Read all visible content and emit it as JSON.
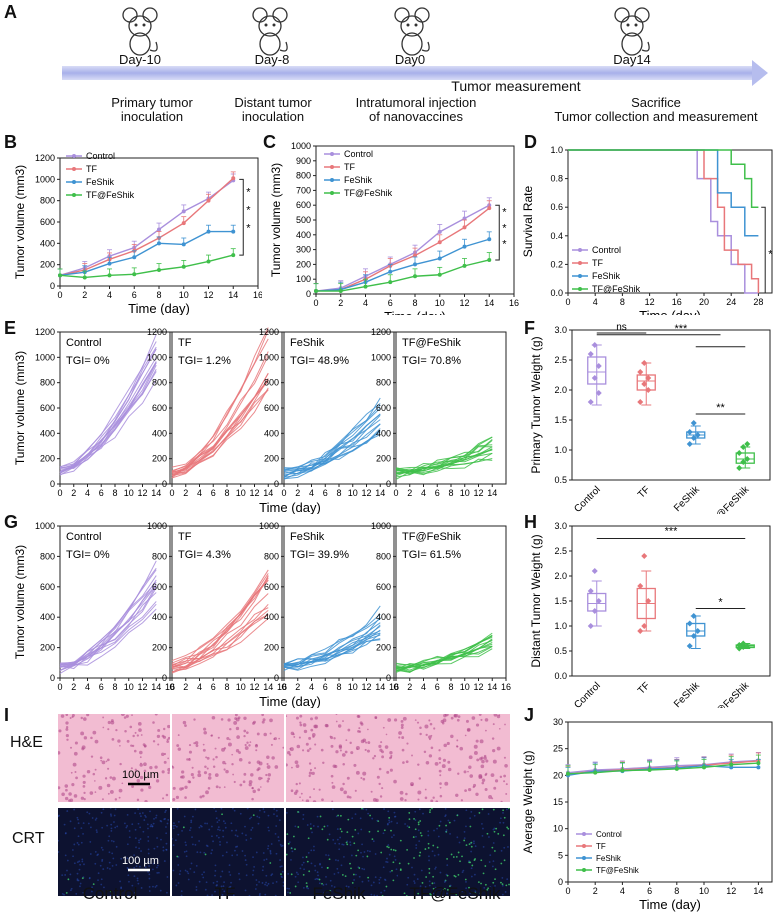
{
  "panels": {
    "A": "A",
    "B": "B",
    "C": "C",
    "D": "D",
    "E": "E",
    "F": "F",
    "G": "G",
    "H": "H",
    "I": "I",
    "J": "J"
  },
  "timeline": {
    "days": [
      "Day-10",
      "Day-8",
      "Day0",
      "Day14"
    ],
    "steps": [
      "Primary tumor inoculation",
      "Distant tumor inoculation",
      "Intratumoral injection of nanovaccines",
      "Sacrifice"
    ],
    "step_lines": [
      [
        "Primary tumor",
        "inoculation"
      ],
      [
        "Distant tumor",
        "inoculation"
      ],
      [
        "Intratumoral injection",
        "of nanovaccines"
      ],
      [
        "Sacrifice",
        "Tumor collection and measurement"
      ]
    ],
    "measurement": "Tumor measurement"
  },
  "colors": {
    "Control": "#a98fdd",
    "TF": "#e8777a",
    "FeShik": "#3f93d2",
    "TF@FeShik": "#3fbf4a"
  },
  "groups": [
    "Control",
    "TF",
    "FeShik",
    "TF@FeShik"
  ],
  "chart_data": [
    {
      "id": "B",
      "type": "line",
      "xlabel": "Time (day)",
      "ylabel": "Tumor volume (mm3)",
      "xlim": [
        0,
        16
      ],
      "ylim": [
        0,
        1200
      ],
      "xticks": [
        0,
        2,
        4,
        6,
        8,
        10,
        12,
        14,
        16
      ],
      "yticks": [
        0,
        200,
        400,
        600,
        800,
        1000,
        1200
      ],
      "x": [
        0,
        2,
        4,
        6,
        8,
        10,
        12,
        14
      ],
      "series": [
        {
          "name": "Control",
          "values": [
            100,
            170,
            280,
            360,
            530,
            700,
            820,
            990
          ]
        },
        {
          "name": "TF",
          "values": [
            100,
            150,
            250,
            330,
            450,
            590,
            800,
            1010
          ]
        },
        {
          "name": "FeShik",
          "values": [
            100,
            130,
            210,
            270,
            400,
            390,
            510,
            510
          ]
        },
        {
          "name": "TF@FeShik",
          "values": [
            100,
            80,
            100,
            110,
            150,
            180,
            230,
            290
          ]
        }
      ],
      "significance": [
        "*",
        "*",
        "*"
      ]
    },
    {
      "id": "C",
      "type": "line",
      "xlabel": "Time (day)",
      "ylabel": "Tumor volume (mm3)",
      "xlim": [
        0,
        16
      ],
      "ylim": [
        0,
        1000
      ],
      "xticks": [
        0,
        2,
        4,
        6,
        8,
        10,
        12,
        14,
        16
      ],
      "yticks": [
        0,
        100,
        200,
        300,
        400,
        500,
        600,
        700,
        800,
        900,
        1000
      ],
      "x": [
        0,
        2,
        4,
        6,
        8,
        10,
        12,
        14
      ],
      "series": [
        {
          "name": "Control",
          "values": [
            20,
            40,
            120,
            200,
            280,
            420,
            510,
            600
          ]
        },
        {
          "name": "TF",
          "values": [
            20,
            30,
            100,
            190,
            260,
            350,
            450,
            580
          ]
        },
        {
          "name": "FeShik",
          "values": [
            20,
            30,
            80,
            150,
            200,
            240,
            320,
            370
          ]
        },
        {
          "name": "TF@FeShik",
          "values": [
            20,
            20,
            50,
            80,
            120,
            130,
            190,
            230
          ]
        }
      ],
      "significance": [
        "*",
        "*",
        "*"
      ]
    },
    {
      "id": "D",
      "type": "line",
      "xlabel": "Time (day)",
      "ylabel": "Survival Rate",
      "xlim": [
        0,
        30
      ],
      "ylim": [
        0,
        1.0
      ],
      "xticks": [
        0,
        4,
        8,
        12,
        16,
        20,
        24,
        28
      ],
      "yticks": [
        0.0,
        0.2,
        0.4,
        0.6,
        0.8,
        1.0
      ],
      "series": [
        {
          "name": "Control",
          "steps": [
            [
              0,
              1.0
            ],
            [
              19,
              1.0
            ],
            [
              19,
              0.8
            ],
            [
              21,
              0.8
            ],
            [
              21,
              0.5
            ],
            [
              22,
              0.5
            ],
            [
              22,
              0.4
            ],
            [
              24,
              0.4
            ],
            [
              24,
              0.2
            ],
            [
              26,
              0.2
            ],
            [
              26,
              0.0
            ],
            [
              28,
              0.0
            ]
          ]
        },
        {
          "name": "TF",
          "steps": [
            [
              0,
              1.0
            ],
            [
              20,
              1.0
            ],
            [
              20,
              0.8
            ],
            [
              22,
              0.8
            ],
            [
              22,
              0.6
            ],
            [
              23,
              0.6
            ],
            [
              23,
              0.3
            ],
            [
              25,
              0.3
            ],
            [
              25,
              0.2
            ],
            [
              27,
              0.2
            ],
            [
              27,
              0.1
            ],
            [
              28,
              0.1
            ],
            [
              28,
              0.0
            ]
          ]
        },
        {
          "name": "FeShik",
          "steps": [
            [
              0,
              1.0
            ],
            [
              22,
              1.0
            ],
            [
              22,
              0.7
            ],
            [
              24,
              0.7
            ],
            [
              24,
              0.6
            ],
            [
              26,
              0.6
            ],
            [
              26,
              0.4
            ],
            [
              28,
              0.4
            ]
          ]
        },
        {
          "name": "TF@FeShik",
          "steps": [
            [
              0,
              1.0
            ],
            [
              24,
              1.0
            ],
            [
              24,
              0.9
            ],
            [
              26,
              0.9
            ],
            [
              26,
              0.8
            ],
            [
              27,
              0.8
            ],
            [
              27,
              0.6
            ],
            [
              28,
              0.6
            ]
          ]
        }
      ],
      "significance": [
        "*"
      ]
    },
    {
      "id": "E",
      "type": "line",
      "xlabel": "Time (day)",
      "ylabel": "Tumor volume (mm3)",
      "ylim": [
        0,
        1200
      ],
      "xlim": [
        0,
        16
      ],
      "xticks": [
        0,
        2,
        4,
        6,
        8,
        10,
        12,
        14
      ],
      "yticks": [
        0,
        200,
        400,
        600,
        800,
        1000,
        1200
      ],
      "subpanels": [
        {
          "group": "Control",
          "tgi": "TGI= 0%",
          "final": 950
        },
        {
          "group": "TF",
          "tgi": "TGI= 1.2%",
          "final": 960
        },
        {
          "group": "FeShik",
          "tgi": "TGI= 48.9%",
          "final": 520
        },
        {
          "group": "TF@FeShik",
          "tgi": "TGI= 70.8%",
          "final": 280
        }
      ]
    },
    {
      "id": "F",
      "type": "box",
      "ylabel": "Primary Tumor Weight (g)",
      "ylim": [
        0.5,
        3.0
      ],
      "yticks": [
        0.5,
        1.0,
        1.5,
        2.0,
        2.5,
        3.0
      ],
      "categories": [
        "Control",
        "TF",
        "FeShik",
        "TF@FeShik"
      ],
      "boxes": [
        [
          1.75,
          2.1,
          2.3,
          2.55,
          2.75
        ],
        [
          1.75,
          2.0,
          2.15,
          2.25,
          2.45
        ],
        [
          1.1,
          1.2,
          1.25,
          1.3,
          1.4
        ],
        [
          0.7,
          0.78,
          0.85,
          0.95,
          1.05
        ]
      ],
      "points": [
        [
          1.8,
          2.2,
          2.4,
          2.6,
          2.75,
          1.95
        ],
        [
          1.8,
          2.1,
          2.2,
          2.3,
          2.45,
          2.0
        ],
        [
          1.1,
          1.2,
          1.25,
          1.3,
          1.45
        ],
        [
          0.7,
          0.8,
          0.85,
          0.95,
          1.05,
          1.1
        ]
      ],
      "significance": [
        {
          "text": "ns"
        },
        {
          "text": "***"
        },
        {
          "text": "**"
        }
      ]
    },
    {
      "id": "G",
      "type": "line",
      "xlabel": "Time (day)",
      "ylabel": "Tumor volume (mm3)",
      "ylim": [
        0,
        1000
      ],
      "xlim": [
        0,
        16
      ],
      "xticks": [
        0,
        2,
        4,
        6,
        8,
        10,
        12,
        14,
        16
      ],
      "yticks": [
        0,
        200,
        400,
        600,
        800,
        1000
      ],
      "subpanels": [
        {
          "group": "Control",
          "tgi": "TGI= 0%",
          "final": 600
        },
        {
          "group": "TF",
          "tgi": "TGI= 4.3%",
          "final": 560
        },
        {
          "group": "FeShik",
          "tgi": "TGI= 39.9%",
          "final": 360
        },
        {
          "group": "TF@FeShik",
          "tgi": "TGI= 61.5%",
          "final": 230
        }
      ]
    },
    {
      "id": "H",
      "type": "box",
      "ylabel": "Distant Tumor Weight (g)",
      "ylim": [
        0.0,
        3.0
      ],
      "yticks": [
        0.0,
        0.5,
        1.0,
        1.5,
        2.0,
        2.5,
        3.0
      ],
      "categories": [
        "Control",
        "TF",
        "FeShik",
        "TF@FeShik"
      ],
      "boxes": [
        [
          1.0,
          1.3,
          1.45,
          1.65,
          1.9
        ],
        [
          0.9,
          1.15,
          1.45,
          1.75,
          2.1
        ],
        [
          0.55,
          0.8,
          0.9,
          1.05,
          1.2
        ],
        [
          0.55,
          0.57,
          0.6,
          0.62,
          0.65
        ]
      ],
      "points": [
        [
          1.0,
          1.3,
          1.5,
          1.7,
          2.1
        ],
        [
          0.9,
          1.0,
          1.5,
          1.8,
          2.4
        ],
        [
          0.6,
          0.8,
          0.9,
          1.05,
          1.2
        ],
        [
          0.55,
          0.58,
          0.6,
          0.62,
          0.65
        ]
      ],
      "significance": [
        {
          "text": "***"
        },
        {
          "text": "*"
        }
      ]
    },
    {
      "id": "J",
      "type": "line",
      "xlabel": "Time (day)",
      "ylabel": "Average Weight (g)",
      "xlim": [
        0,
        15
      ],
      "ylim": [
        0,
        30
      ],
      "xticks": [
        0,
        2,
        4,
        6,
        8,
        10,
        12,
        14
      ],
      "yticks": [
        0,
        5,
        10,
        15,
        20,
        25,
        30
      ],
      "x": [
        0,
        2,
        4,
        6,
        8,
        10,
        12,
        14
      ],
      "series": [
        {
          "name": "Control",
          "values": [
            20.5,
            21.0,
            21.2,
            21.5,
            21.8,
            22.0,
            22.5,
            22.8
          ]
        },
        {
          "name": "TF",
          "values": [
            20.2,
            20.8,
            21.0,
            21.3,
            21.5,
            21.9,
            22.3,
            22.7
          ]
        },
        {
          "name": "FeShik",
          "values": [
            20.0,
            20.8,
            20.8,
            21.2,
            21.4,
            21.8,
            21.5,
            21.5
          ]
        },
        {
          "name": "TF@FeShik",
          "values": [
            20.3,
            20.5,
            20.9,
            21.0,
            21.2,
            21.5,
            22.0,
            22.3
          ]
        }
      ]
    }
  ],
  "histology": {
    "rows": [
      "H&E",
      "CRT"
    ],
    "columns": [
      "Control",
      "TF",
      "FeShik",
      "TF@FeShik"
    ],
    "scalebar": "100 µm"
  }
}
